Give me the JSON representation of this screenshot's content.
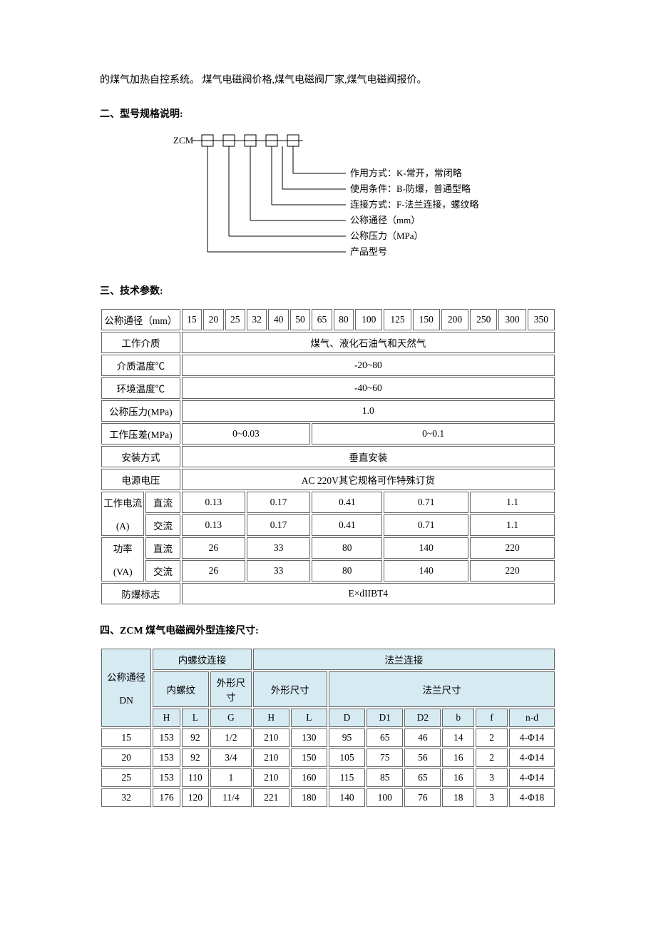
{
  "intro_line": "的煤气加热自控系统。  煤气电磁阀价格,煤气电磁阀厂家,煤气电磁阀报价。",
  "section2_title": "二、型号规格说明:",
  "diagram": {
    "code": "ZCM",
    "lines": [
      "作用方式：K-常开，常闭略",
      "使用条件：B-防爆，普通型略",
      "连接方式：F-法兰连接，螺纹略",
      "公称通径（mm）",
      "公称压力（MPa）",
      "产品型号"
    ]
  },
  "section3_title": "三、技术参数:",
  "t1": {
    "header_label": "公称通径（mm）",
    "sizes": [
      "15",
      "20",
      "25",
      "32",
      "40",
      "50",
      "65",
      "80",
      "100",
      "125",
      "150",
      "200",
      "250",
      "300",
      "350"
    ],
    "rows": {
      "medium_label": "工作介质",
      "medium_val": "煤气、液化石油气和天然气",
      "medium_temp_label": "介质温度℃",
      "medium_temp_val": "-20~80",
      "env_temp_label": "环境温度℃",
      "env_temp_val": "-40~60",
      "nominal_pressure_label": "公称压力(MPa)",
      "nominal_pressure_val": "1.0",
      "work_diff_label": "工作压差(MPa)",
      "work_diff_a": "0~0.03",
      "work_diff_b": "0~0.1",
      "install_label": "安装方式",
      "install_val": "垂直安装",
      "voltage_label": "电源电压",
      "voltage_val": "AC 220V其它规格可作特殊订货",
      "current_group_label": "工作电流",
      "current_unit": "(A)",
      "dc_label": "直流",
      "ac_label": "交流",
      "current_dc": [
        "0.13",
        "0.17",
        "0.41",
        "0.71",
        "1.1"
      ],
      "current_ac": [
        "0.13",
        "0.17",
        "0.41",
        "0.71",
        "1.1"
      ],
      "power_group_label": "功率",
      "power_unit": "(VA)",
      "power_dc": [
        "26",
        "33",
        "80",
        "140",
        "220"
      ],
      "power_ac": [
        "26",
        "33",
        "80",
        "140",
        "220"
      ],
      "ex_label": "防爆标志",
      "ex_val": "E×dIIBT4"
    }
  },
  "section4_title": "四、ZCM 煤气电磁阀外型连接尺寸:",
  "t2": {
    "col_dn_top": "公称通径",
    "col_dn_bot": "DN",
    "group_thread": "内螺纹连接",
    "group_flange": "法兰连接",
    "sub_thread": "内螺纹",
    "sub_shape": "外形尺寸",
    "sub_flange_dim": "法兰尺寸",
    "cols": {
      "H": "H",
      "L": "L",
      "G": "G",
      "H2": "H",
      "L2": "L",
      "D": "D",
      "D1": "D1",
      "D2": "D2",
      "b": "b",
      "f": "f",
      "nd": "n-d"
    },
    "rows": [
      {
        "dn": "15",
        "H": "153",
        "L": "92",
        "G": "1/2",
        "H2": "210",
        "L2": "130",
        "D": "95",
        "D1": "65",
        "D2": "46",
        "b": "14",
        "f": "2",
        "nd": "4-Φ14"
      },
      {
        "dn": "20",
        "H": "153",
        "L": "92",
        "G": "3/4",
        "H2": "210",
        "L2": "150",
        "D": "105",
        "D1": "75",
        "D2": "56",
        "b": "16",
        "f": "2",
        "nd": "4-Φ14"
      },
      {
        "dn": "25",
        "H": "153",
        "L": "110",
        "G": "1",
        "H2": "210",
        "L2": "160",
        "D": "115",
        "D1": "85",
        "D2": "65",
        "b": "16",
        "f": "3",
        "nd": "4-Φ14"
      },
      {
        "dn": "32",
        "H": "176",
        "L": "120",
        "G": "11/4",
        "H2": "221",
        "L2": "180",
        "D": "140",
        "D1": "100",
        "D2": "76",
        "b": "18",
        "f": "3",
        "nd": "4-Φ18"
      }
    ]
  }
}
